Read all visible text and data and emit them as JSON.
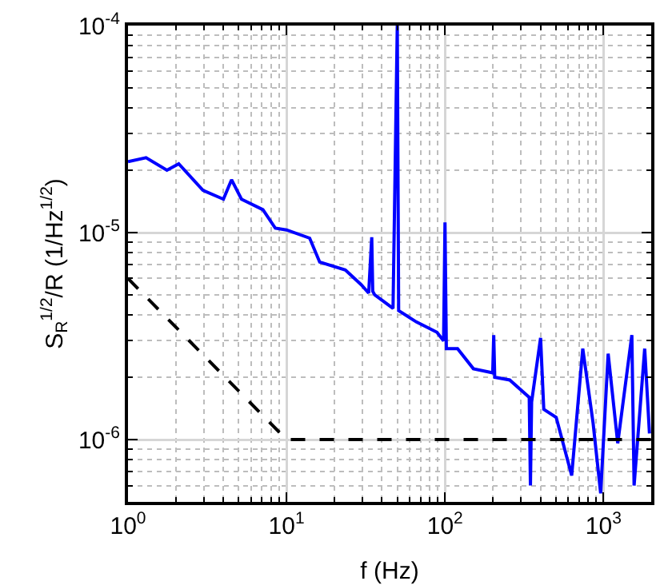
{
  "chart_data": {
    "type": "line",
    "xlabel": "f (Hz)",
    "ylabel": "S$_{R}$$^{1/2}$/R (1/Hz$^{1/2}$)",
    "log": "xy",
    "grid": true,
    "marker": "none",
    "xlim": [
      1,
      2000
    ],
    "ylim": [
      5e-07,
      0.0001
    ],
    "xticks": [
      {
        "value": 1,
        "label": "10$^{0}$"
      },
      {
        "value": 10,
        "label": "10$^{1}$"
      },
      {
        "value": 100,
        "label": "10$^{2}$"
      },
      {
        "value": 1000,
        "label": "10$^{3}$"
      }
    ],
    "yticks": [
      {
        "value": 1e-06,
        "label": "10$^{-6}$"
      },
      {
        "value": 1e-05,
        "label": "10$^{-5}$"
      },
      {
        "value": 0.0001,
        "label": "10$^{-4}$"
      }
    ],
    "series": [
      {
        "color": "#0000ff",
        "line_style": "solid",
        "x": [
          1,
          1.3,
          1.76,
          2.09,
          2.97,
          4.0,
          4.5,
          5.2,
          7.1,
          8.5,
          10,
          14,
          16.2,
          23.5,
          29.6,
          33,
          34.5,
          35,
          36,
          38.8,
          47,
          50,
          51,
          66,
          89,
          98,
          100,
          102,
          120,
          151,
          200,
          203,
          206,
          256,
          340,
          346,
          352,
          401,
          420,
          503,
          630,
          740,
          860,
          960,
          1070,
          1230,
          1510,
          1560,
          1820,
          1950
        ],
        "values": [
          2.2e-05,
          2.3e-05,
          2e-05,
          2.15e-05,
          1.6e-05,
          1.45e-05,
          1.8e-05,
          1.45e-05,
          1.29e-05,
          1.05e-05,
          1.03e-05,
          9.4e-06,
          7.2e-06,
          6.6e-06,
          5.6e-06,
          5.1e-06,
          9.5e-06,
          5.2e-06,
          5e-06,
          4.8e-06,
          4.3e-06,
          0.0001,
          4.2e-06,
          3.7e-06,
          3.3e-06,
          3e-06,
          1.12e-05,
          2.75e-06,
          2.75e-06,
          2.2e-06,
          2.1e-06,
          3.2e-06,
          2e-06,
          1.94e-06,
          1.6e-06,
          6e-07,
          1.52e-06,
          3.1e-06,
          1.4e-06,
          1.28e-06,
          6.7e-07,
          2.75e-06,
          1.2e-06,
          5.5e-07,
          2.6e-06,
          9.6e-07,
          3.2e-06,
          6e-07,
          2.75e-06,
          1.07e-06
        ]
      },
      {
        "color": "#000000",
        "line_style": "dashed",
        "x": [
          1,
          10,
          2000
        ],
        "values": [
          6e-06,
          1e-06,
          1e-06
        ]
      }
    ]
  }
}
